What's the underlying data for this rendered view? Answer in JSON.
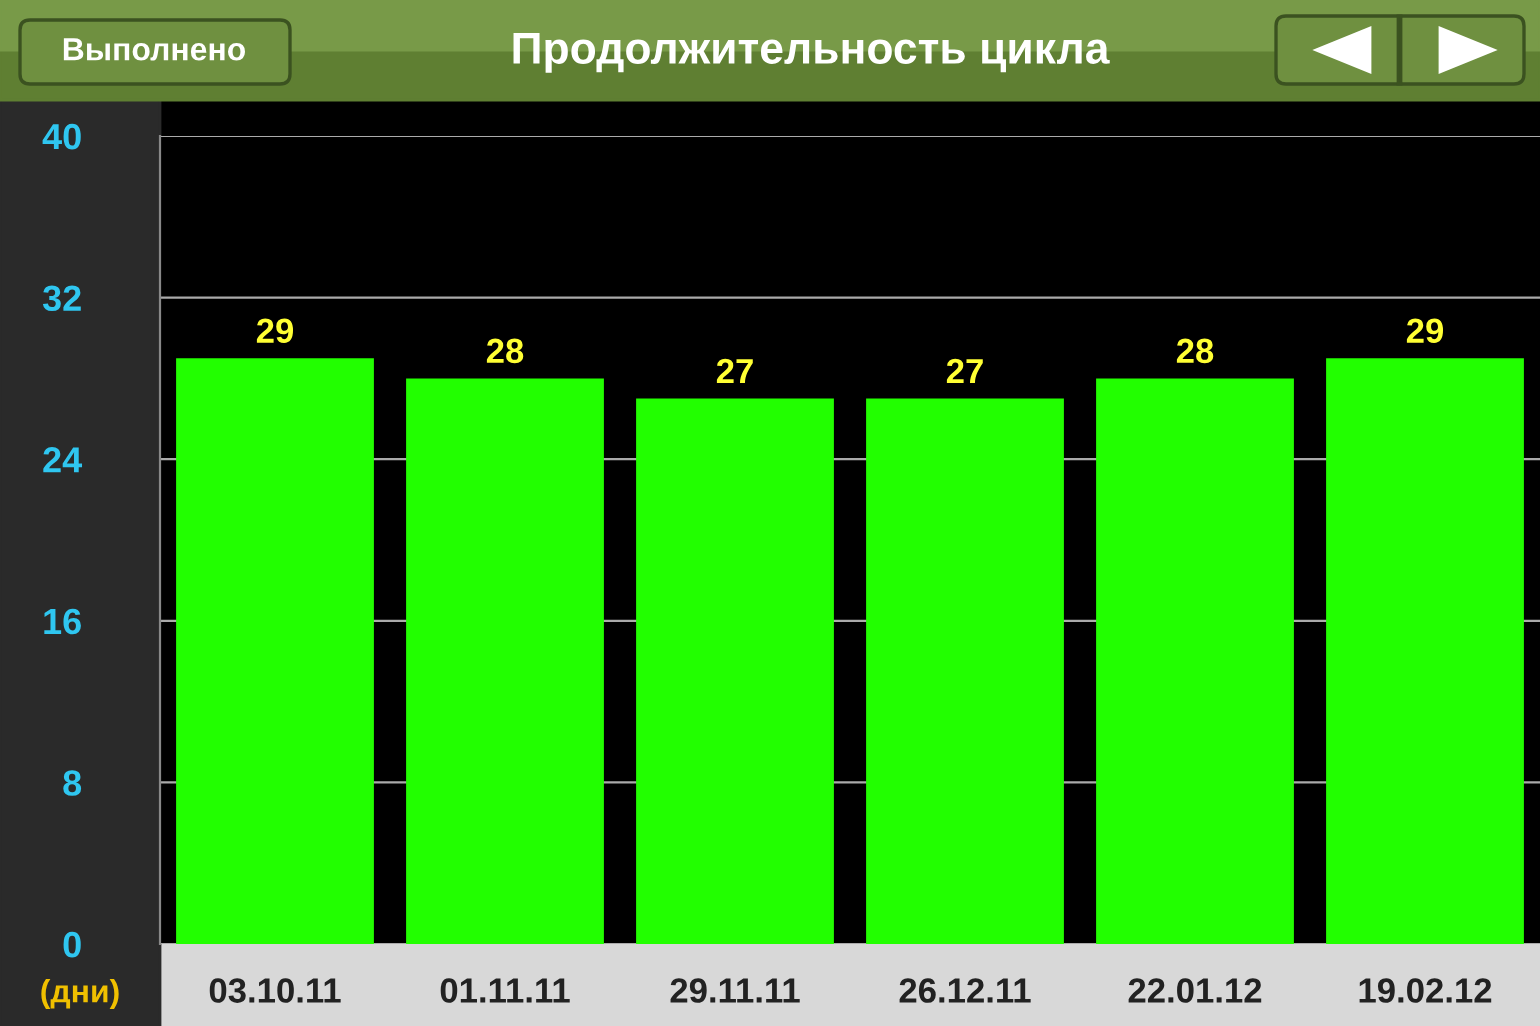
{
  "chart_data": {
    "type": "bar",
    "title": "Продолжительность цикла",
    "ylabel": "(дни)",
    "annotations": [
      "Выполнено"
    ],
    "categories": [
      "03.10.11",
      "01.11.11",
      "29.11.11",
      "26.12.11",
      "22.01.12",
      "19.02.12"
    ],
    "values": [
      29,
      28,
      27,
      27,
      28,
      29
    ],
    "color": "#22ff00",
    "ylim": [
      0,
      40
    ],
    "yticks": [
      0,
      8,
      16,
      24,
      32,
      40
    ],
    "grid": "y",
    "data_labels": true,
    "legend": false
  }
}
